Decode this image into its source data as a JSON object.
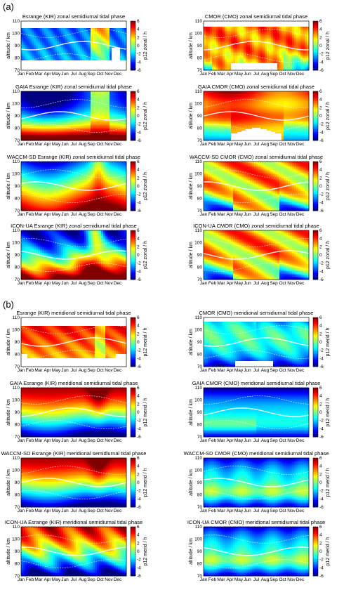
{
  "section_labels": [
    "(a)",
    "(b)"
  ],
  "colors": {
    "frame": "#000000",
    "contour_solid": "#ffffff",
    "contour_dashed": "#ffffff",
    "gap": "#ffffff"
  },
  "chart_data": [
    {
      "type": "heatmap",
      "section": "a",
      "title": "Esrange (KIR) zonal semidiurnal tidal phase",
      "ylabel": "altitude / km",
      "cbar_label": "p12 zonal / h",
      "style": "kir_zonal_obs"
    },
    {
      "type": "heatmap",
      "section": "a",
      "title": "CMOR (CMO) zonal semidiurnal tidal phase",
      "ylabel": "altitude / km",
      "cbar_label": "p12 zonal / h",
      "style": "cmo_zonal_obs"
    },
    {
      "type": "heatmap",
      "section": "a",
      "title": "GAIA Esrange (KIR) zonal semidiurnal tidal phase",
      "ylabel": "altitude / km",
      "cbar_label": "p12 zonal / h",
      "style": "kir_zonal_model"
    },
    {
      "type": "heatmap",
      "section": "a",
      "title": "GAIA CMOR (CMO) zonal semidiurnal tidal phase",
      "ylabel": "altitude / km",
      "cbar_label": "p12 zonal / h",
      "style": "cmo_zonal_gaia"
    },
    {
      "type": "heatmap",
      "section": "a",
      "title": "WACCM-SD Esrange (KIR) zonal semidiurnal tidal phase",
      "ylabel": "altitude / km",
      "cbar_label": "p12 zonal / h",
      "style": "kir_zonal_waccm"
    },
    {
      "type": "heatmap",
      "section": "a",
      "title": "WACCM-SD CMOR (CMO) zonal semidiurnal tidal phase",
      "ylabel": "altitude / km",
      "cbar_label": "p12 zonal / h",
      "style": "cmo_zonal_model"
    },
    {
      "type": "heatmap",
      "section": "a",
      "title": "ICON-UA Esrange (KIR) zonal semidiurnal tidal phase",
      "ylabel": "altitude / km",
      "cbar_label": "p12 zonal / h",
      "style": "kir_zonal_icon"
    },
    {
      "type": "heatmap",
      "section": "a",
      "title": "ICON-UA CMOR (CMO) zonal semidiurnal tidal phase",
      "ylabel": "altitude / km",
      "cbar_label": "p12 zonal / h",
      "style": "cmo_zonal_model"
    },
    {
      "type": "heatmap",
      "section": "b",
      "title": "Esrange (KIR) meridional semidiurnal tidal phase",
      "ylabel": "altitude / km",
      "cbar_label": "p12 merid / h",
      "style": "kir_merid_obs"
    },
    {
      "type": "heatmap",
      "section": "b",
      "title": "CMOR (CMO) meridional semidiurnal tidal phase",
      "ylabel": "altitude / km",
      "cbar_label": "p12 merid / h",
      "style": "cmo_merid_obs"
    },
    {
      "type": "heatmap",
      "section": "b",
      "title": "GAIA Esrange (KIR) meridional semidiurnal tidal phase",
      "ylabel": "altitude / km",
      "cbar_label": "p12 merid / h",
      "style": "kir_merid_model"
    },
    {
      "type": "heatmap",
      "section": "b",
      "title": "GAIA CMOR (CMO) meridional semidiurnal tidal phase",
      "ylabel": "altitude / km",
      "cbar_label": "p12 merid / h",
      "style": "cmo_merid_gaia"
    },
    {
      "type": "heatmap",
      "section": "b",
      "title": "WACCM-SD Esrange (KIR) meridional semidiurnal tidal phase",
      "ylabel": "altitude / km",
      "cbar_label": "p12 merid / h",
      "style": "kir_merid_model"
    },
    {
      "type": "heatmap",
      "section": "b",
      "title": "WACCM-SD CMOR (CMO) meridional semidiurnal tidal phase",
      "ylabel": "altitude / km",
      "cbar_label": "p12 merid / h",
      "style": "cmo_merid_model"
    },
    {
      "type": "heatmap",
      "section": "b",
      "title": "ICON-UA Esrange (KIR) meridional semidiurnal tidal phase",
      "ylabel": "altitude / km",
      "cbar_label": "p12 merid / h",
      "style": "kir_merid_icon"
    },
    {
      "type": "heatmap",
      "section": "b",
      "title": "ICON-UA CMOR (CMO) meridional semidiurnal tidal phase",
      "ylabel": "altitude / km",
      "cbar_label": "p12 merid / h",
      "style": "cmo_merid_model"
    }
  ],
  "axes": {
    "x_tick_labels": [
      "Jan",
      "Feb",
      "Mar",
      "Apr",
      "May",
      "Jun",
      "Jul",
      "Aug",
      "Sep",
      "Oct",
      "Nov",
      "Dec"
    ],
    "y_ticks": [
      70,
      80,
      90,
      100,
      110
    ],
    "ylim": [
      70,
      110
    ],
    "cbar_ticks": [
      6,
      4,
      2,
      0,
      -2,
      -4,
      -6
    ],
    "clim": [
      -6,
      6
    ],
    "colormap": "jet"
  }
}
